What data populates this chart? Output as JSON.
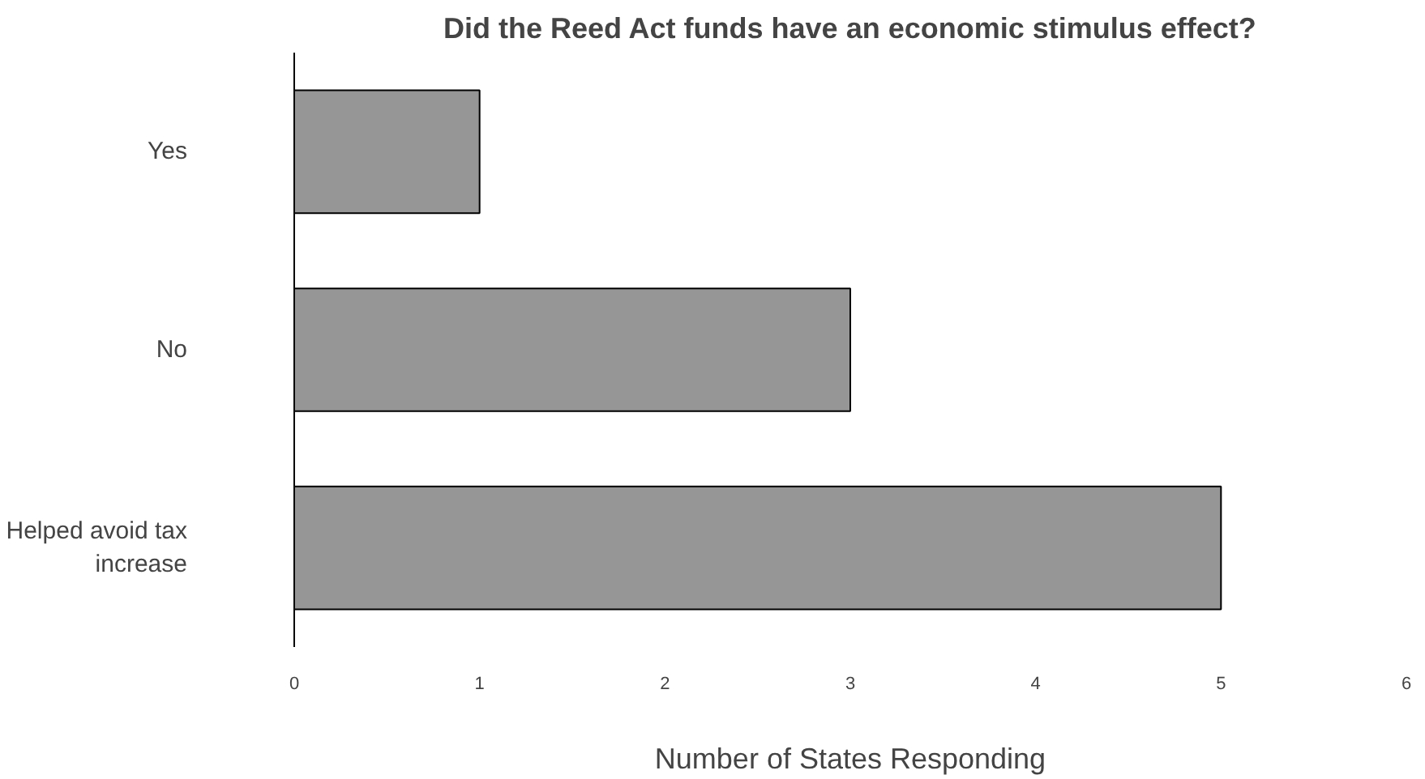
{
  "chart_data": {
    "type": "bar",
    "orientation": "horizontal",
    "title": "Did the Reed Act funds have an economic stimulus effect?",
    "xlabel": "Number of States Responding",
    "categories": [
      "Yes",
      "No",
      "Helped avoid tax increase"
    ],
    "values": [
      1,
      3,
      5
    ],
    "color": "#969696",
    "xlim": [
      0,
      6
    ],
    "xticks": [
      0,
      1,
      2,
      3,
      4,
      5,
      6
    ],
    "grid": false
  }
}
